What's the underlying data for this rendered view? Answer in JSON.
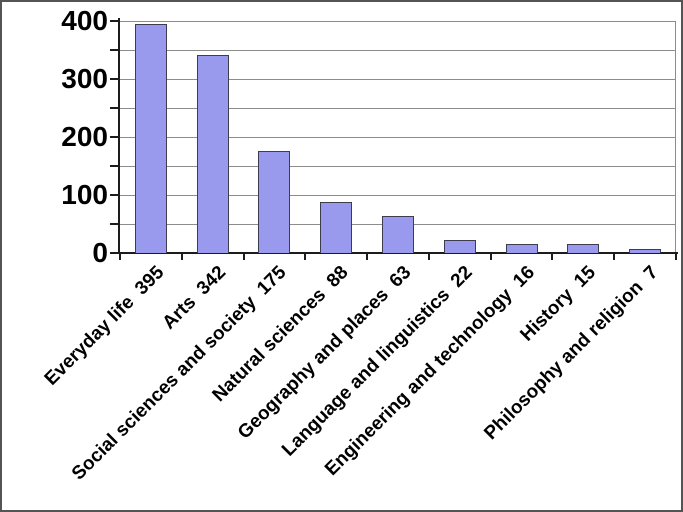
{
  "chart_data": {
    "type": "bar",
    "title": "",
    "xlabel": "",
    "ylabel": "",
    "categories": [
      "Everyday life",
      "Arts",
      "Social sciences and society",
      "Natural sciences",
      "Geography and places",
      "Language and linguistics",
      "Engineering and technology",
      "History",
      "Philosophy and religion"
    ],
    "values": [
      395,
      342,
      175,
      88,
      63,
      22,
      16,
      15,
      7
    ],
    "x_tick_labels": [
      "Everyday life  395",
      "Arts  342",
      "Social sciences and society  175",
      "Natural sciences  88",
      "Geography and places  63",
      "Language and linguistics  22",
      "Engineering and technology  16",
      "History  15",
      "Philosophy and religion  7"
    ],
    "ylim": [
      0,
      400
    ],
    "y_major_ticks": [
      0,
      100,
      200,
      300,
      400
    ],
    "y_minor_tick_step": 50,
    "grid": "horizontal gridlines every 50, plot area bordered top and right",
    "legend": "none",
    "colors": {
      "bar_fill": "#9999ee",
      "bar_border": "#3d3d4d",
      "gridline": "#8c8c8c",
      "axis": "#1c1c1c",
      "text": "#000000",
      "frame_border": "#545454",
      "background": "#ffffff"
    }
  }
}
